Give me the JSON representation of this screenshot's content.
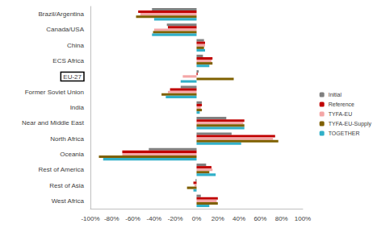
{
  "chart_data": {
    "type": "bar",
    "orientation": "horizontal",
    "categories": [
      "Brazil/Argentina",
      "Canada/USA",
      "China",
      "ECS Africa",
      "EU-27",
      "Former Soviet Union",
      "India",
      "Near and Middle East",
      "North Africa",
      "Oceania",
      "Rest of America",
      "Rest of Asia",
      "West Africa"
    ],
    "series": [
      {
        "name": "Initial",
        "color": "#808080",
        "values": [
          -42,
          -28,
          7,
          6,
          2,
          -15,
          5,
          28,
          33,
          -45,
          9,
          -1,
          4
        ]
      },
      {
        "name": "Reference",
        "color": "#c00000",
        "values": [
          -55,
          -27,
          8,
          15,
          1,
          -25,
          5,
          45,
          74,
          -70,
          14,
          -3,
          20
        ]
      },
      {
        "name": "TYFA-EU",
        "color": "#f4a6a6",
        "values": [
          -53,
          -40,
          8,
          14,
          -13,
          -27,
          4,
          44,
          72,
          -70,
          15,
          -2,
          19
        ]
      },
      {
        "name": "TYFA-EU-Supply",
        "color": "#7f6000",
        "values": [
          -57,
          -41,
          7,
          15,
          35,
          -33,
          5,
          45,
          77,
          -92,
          12,
          -9,
          20
        ]
      },
      {
        "name": "TOGETHER",
        "color": "#31b0c8",
        "values": [
          -40,
          -42,
          8,
          12,
          -15,
          -29,
          3,
          45,
          42,
          -88,
          18,
          -3,
          12
        ]
      }
    ],
    "xlim": [
      -100,
      100
    ],
    "xticks": [
      {
        "value": -100,
        "label": "-100%"
      },
      {
        "value": -80,
        "label": "-80%"
      },
      {
        "value": -60,
        "label": "-60%"
      },
      {
        "value": -40,
        "label": "-40%"
      },
      {
        "value": -20,
        "label": "-20%"
      },
      {
        "value": 0,
        "label": "0%"
      },
      {
        "value": 20,
        "label": "20%"
      },
      {
        "value": 40,
        "label": "40%"
      },
      {
        "value": 60,
        "label": "60%"
      },
      {
        "value": 80,
        "label": "80%"
      },
      {
        "value": 100,
        "label": "100%"
      }
    ],
    "grid": false,
    "legend": "right",
    "data_labels": false
  }
}
